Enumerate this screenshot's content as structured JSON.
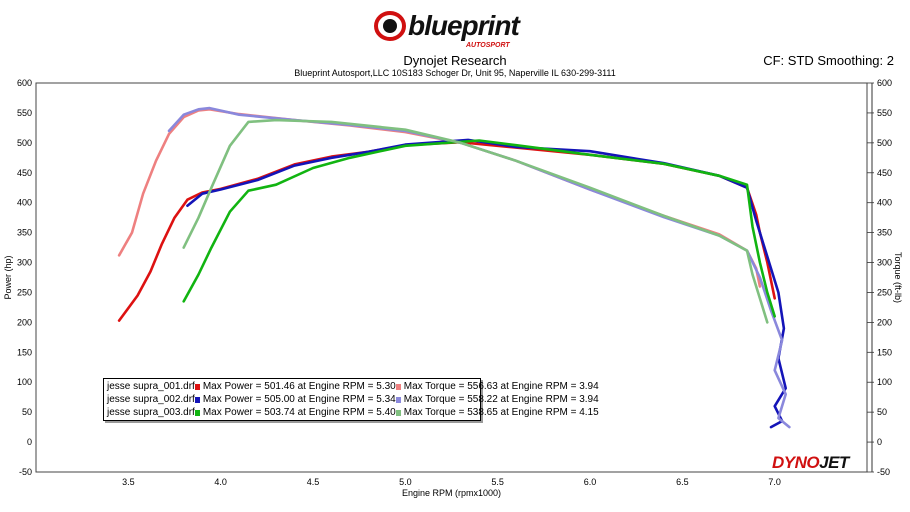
{
  "header": {
    "logo_text": "blueprint",
    "logo_subtext": "AUTOSPORT",
    "title": "Dynojet Research",
    "address": "Blueprint Autosport,LLC   10S183 Schoger Dr, Unit 95, Naperville IL 630-299-3111",
    "cf_smoothing": "CF: STD Smoothing: 2"
  },
  "footer_logo": {
    "part1": "DYNO",
    "part2": "JET"
  },
  "colors": {
    "run1_power": "#dd1111",
    "run1_torque": "#ee8080",
    "run2_power": "#1414b8",
    "run2_torque": "#8a88dc",
    "run3_power": "#11b411",
    "run3_torque": "#80c080",
    "plot_background": "#ffffff",
    "grid": "#bcbcbc",
    "logo_red": "#d01010"
  },
  "legend": [
    {
      "file": "jesse supra_001.drf",
      "power": "Max Power = 501.46 at Engine RPM = 5.30",
      "torque": "Max Torque = 556.63 at Engine RPM = 3.94"
    },
    {
      "file": "jesse supra_002.drf",
      "power": "Max Power = 505.00 at Engine RPM = 5.34",
      "torque": "Max Torque = 558.22 at Engine RPM = 3.94"
    },
    {
      "file": "jesse supra_003.drf",
      "power": "Max Power = 503.74 at Engine RPM = 5.40",
      "torque": "Max Torque = 538.65 at Engine RPM = 4.15"
    }
  ],
  "chart_data": {
    "type": "line",
    "title": "Dynojet Research",
    "xlabel": "Engine RPM (rpmx1000)",
    "ylabel": "Power (hp)",
    "y2label": "Torque (ft-lb)",
    "xlim": [
      3.0,
      7.5
    ],
    "ylim": [
      -50,
      600
    ],
    "y2lim": [
      -50,
      600
    ],
    "x_ticks": [
      "3.5",
      "4.0",
      "4.5",
      "5.0",
      "5.5",
      "6.0",
      "6.5",
      "7.0"
    ],
    "y_ticks": [
      "-50",
      "0",
      "50",
      "100",
      "150",
      "200",
      "250",
      "300",
      "350",
      "400",
      "450",
      "500",
      "550",
      "600"
    ],
    "grid": true,
    "legend_position": "bottom-left",
    "series": [
      {
        "name": "jesse supra_001.drf",
        "measure": "power",
        "color_key": "run1_power",
        "x": [
          3.45,
          3.55,
          3.62,
          3.68,
          3.75,
          3.82,
          3.9,
          4.0,
          4.2,
          4.4,
          4.6,
          4.8,
          5.0,
          5.3,
          5.6,
          6.0,
          6.4,
          6.7,
          6.85,
          6.9,
          6.92,
          6.96,
          6.98,
          7.0
        ],
        "y": [
          203,
          245,
          285,
          330,
          375,
          405,
          417,
          423,
          440,
          464,
          477,
          485,
          496,
          501,
          492,
          480,
          465,
          445,
          425,
          380,
          350,
          300,
          270,
          240
        ]
      },
      {
        "name": "jesse supra_001.drf",
        "measure": "torque",
        "color_key": "run1_torque",
        "x": [
          3.45,
          3.52,
          3.58,
          3.65,
          3.72,
          3.8,
          3.88,
          3.94,
          4.1,
          4.4,
          4.7,
          5.0,
          5.3,
          5.6,
          6.0,
          6.4,
          6.7,
          6.85,
          6.9,
          6.92
        ],
        "y": [
          312,
          350,
          415,
          470,
          515,
          543,
          554,
          556,
          548,
          538,
          529,
          518,
          500,
          470,
          422,
          378,
          347,
          320,
          290,
          260
        ]
      },
      {
        "name": "jesse supra_002.drf",
        "measure": "power",
        "color_key": "run2_power",
        "x": [
          3.82,
          3.9,
          4.0,
          4.2,
          4.4,
          4.6,
          4.8,
          5.0,
          5.34,
          5.6,
          6.0,
          6.4,
          6.7,
          6.85,
          6.9,
          6.94,
          6.98,
          7.02,
          7.05,
          7.02,
          7.06,
          7.0,
          7.04,
          6.98
        ],
        "y": [
          395,
          415,
          422,
          438,
          462,
          475,
          485,
          497,
          505,
          493,
          486,
          466,
          445,
          425,
          370,
          330,
          290,
          250,
          190,
          140,
          90,
          60,
          35,
          25
        ]
      },
      {
        "name": "jesse supra_002.drf",
        "measure": "torque",
        "color_key": "run2_torque",
        "x": [
          3.72,
          3.8,
          3.88,
          3.94,
          4.1,
          4.4,
          4.7,
          5.0,
          5.3,
          5.6,
          6.0,
          6.4,
          6.7,
          6.85,
          6.92,
          6.98,
          7.04,
          7.0,
          7.06,
          7.02,
          7.08
        ],
        "y": [
          520,
          547,
          556,
          558,
          547,
          538,
          530,
          520,
          500,
          470,
          422,
          376,
          345,
          320,
          275,
          220,
          170,
          120,
          80,
          40,
          25
        ]
      },
      {
        "name": "jesse supra_003.drf",
        "measure": "power",
        "color_key": "run3_power",
        "x": [
          3.8,
          3.88,
          3.95,
          4.05,
          4.15,
          4.3,
          4.5,
          4.7,
          5.0,
          5.4,
          5.6,
          6.0,
          6.4,
          6.7,
          6.85,
          6.88,
          6.92,
          6.96,
          7.0
        ],
        "y": [
          235,
          280,
          325,
          385,
          420,
          430,
          458,
          475,
          495,
          504,
          496,
          480,
          465,
          445,
          430,
          360,
          300,
          250,
          210
        ]
      },
      {
        "name": "jesse supra_003.drf",
        "measure": "torque",
        "color_key": "run3_torque",
        "x": [
          3.8,
          3.88,
          3.95,
          4.05,
          4.15,
          4.3,
          4.6,
          5.0,
          5.3,
          5.6,
          6.0,
          6.4,
          6.7,
          6.85,
          6.88,
          6.92,
          6.96
        ],
        "y": [
          325,
          375,
          425,
          495,
          535,
          538,
          535,
          522,
          500,
          470,
          425,
          378,
          345,
          320,
          280,
          240,
          200
        ]
      }
    ]
  }
}
